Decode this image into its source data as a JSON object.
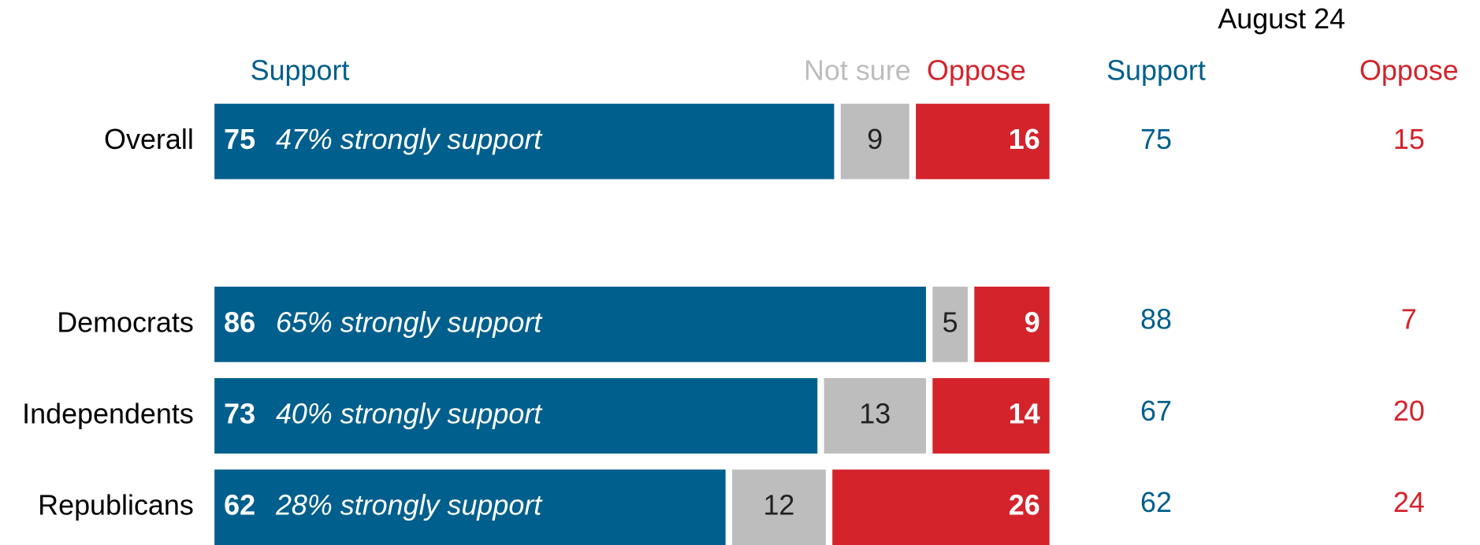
{
  "chart_data": {
    "type": "stacked-bar",
    "categories": [
      "Overall",
      "Democrats",
      "Independents",
      "Republicans"
    ],
    "series": [
      {
        "name": "Support",
        "color": "#005f8c",
        "values": [
          75,
          86,
          73,
          62
        ]
      },
      {
        "name": "Not sure",
        "color": "#bdbdbd",
        "values": [
          9,
          5,
          13,
          12
        ]
      },
      {
        "name": "Oppose",
        "color": "#d4232b",
        "values": [
          16,
          9,
          14,
          26
        ]
      }
    ],
    "annotations": [
      "47% strongly support",
      "65% strongly support",
      "40% strongly support",
      "28% strongly support"
    ],
    "xlim": [
      0,
      100
    ],
    "comparison": {
      "title": "August 24",
      "columns": [
        {
          "name": "Support",
          "color": "#005f8c",
          "values": [
            75,
            88,
            67,
            62
          ]
        },
        {
          "name": "Oppose",
          "color": "#d4232b",
          "values": [
            15,
            7,
            20,
            24
          ]
        }
      ]
    }
  }
}
